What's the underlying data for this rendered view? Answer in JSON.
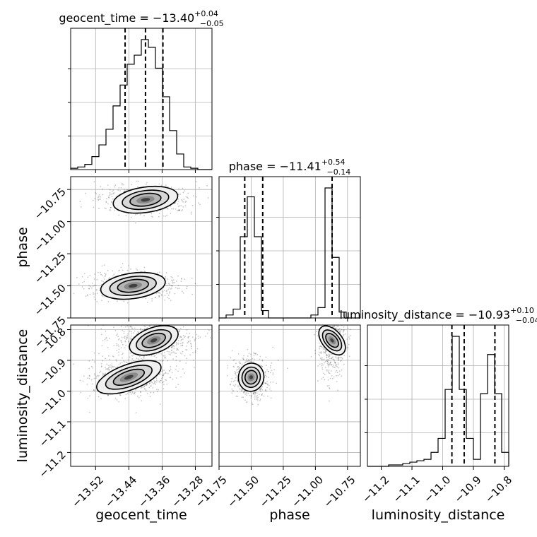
{
  "chart_data": {
    "type": "corner",
    "parameters": [
      {
        "name": "geocent_time",
        "axis_label": "geocent_time",
        "title": {
          "prefix": "geocent_time = ",
          "median": "−13.40",
          "upper": "+0.04",
          "lower": "−0.05"
        },
        "range": [
          -13.58,
          -13.24
        ],
        "ticks": [
          "−13.52",
          "−13.44",
          "−13.36",
          "−13.28"
        ],
        "tick_values": [
          -13.52,
          -13.44,
          -13.36,
          -13.28
        ],
        "quantile_lines": [
          -13.449,
          -13.4,
          -13.358
        ],
        "histogram": {
          "bin_edges": [
            -13.58,
            -13.563,
            -13.546,
            -13.529,
            -13.512,
            -13.495,
            -13.478,
            -13.461,
            -13.444,
            -13.427,
            -13.41,
            -13.393,
            -13.376,
            -13.359,
            -13.342,
            -13.325,
            -13.308,
            -13.291,
            -13.274,
            -13.257,
            -13.24
          ],
          "counts": [
            1,
            2,
            4,
            10,
            19,
            31,
            49,
            65,
            81,
            88,
            100,
            94,
            78,
            56,
            30,
            12,
            2,
            1,
            0,
            0
          ]
        }
      },
      {
        "name": "phase",
        "axis_label": "phase",
        "title": {
          "prefix": "phase = ",
          "median": "−11.41",
          "upper": "+0.54",
          "lower": "−0.14"
        },
        "range": [
          -11.75,
          -10.65
        ],
        "ticks": [
          "−11.75",
          "−11.50",
          "−11.25",
          "−11.00",
          "−10.75"
        ],
        "tick_values": [
          -11.75,
          -11.5,
          -11.25,
          -11.0,
          -10.75
        ],
        "quantile_lines": [
          -11.55,
          -11.41,
          -10.87
        ],
        "histogram": {
          "bin_edges": [
            -11.75,
            -11.695,
            -11.64,
            -11.585,
            -11.53,
            -11.475,
            -11.42,
            -11.365,
            -11.31,
            -11.255,
            -11.2,
            -11.145,
            -11.09,
            -11.035,
            -10.98,
            -10.925,
            -10.87,
            -10.815,
            -10.76,
            -10.705,
            -10.65
          ],
          "counts": [
            0,
            2,
            6,
            55,
            82,
            55,
            5,
            0,
            0,
            0,
            0,
            0,
            0,
            2,
            7,
            88,
            41,
            4,
            0,
            0
          ]
        }
      },
      {
        "name": "luminosity_distance",
        "axis_label": "luminosity_distance",
        "title": {
          "prefix": "luminosity_distance = ",
          "median": "−10.93",
          "upper": "+0.10",
          "lower": "−0.04"
        },
        "range": [
          -11.245,
          -10.785
        ],
        "ticks": [
          "−11.2",
          "−11.1",
          "−11.0",
          "−10.9",
          "−10.8"
        ],
        "tick_values": [
          -11.2,
          -11.1,
          -11.0,
          -10.9,
          -10.8
        ],
        "quantile_lines": [
          -10.97,
          -10.93,
          -10.83
        ],
        "histogram": {
          "bin_edges": [
            -11.245,
            -11.222,
            -11.199,
            -11.176,
            -11.153,
            -11.13,
            -11.107,
            -11.084,
            -11.061,
            -11.038,
            -11.015,
            -10.992,
            -10.969,
            -10.946,
            -10.923,
            -10.9,
            -10.877,
            -10.854,
            -10.831,
            -10.808,
            -10.785
          ],
          "counts": [
            0,
            0,
            0,
            1,
            1,
            2,
            3,
            4,
            5,
            10,
            20,
            55,
            93,
            55,
            20,
            5,
            52,
            80,
            52,
            10
          ]
        }
      }
    ],
    "pairs": [
      {
        "x": "geocent_time",
        "y": "phase",
        "density_peaks": [
          {
            "x": -13.4,
            "y": -10.83
          },
          {
            "x": -13.43,
            "y": -11.5
          }
        ]
      },
      {
        "x": "geocent_time",
        "y": "luminosity_distance",
        "density_peaks": [
          {
            "x": -13.38,
            "y": -10.835
          },
          {
            "x": -13.44,
            "y": -10.955
          }
        ]
      },
      {
        "x": "phase",
        "y": "luminosity_distance",
        "density_peaks": [
          {
            "x": -10.87,
            "y": -10.835
          },
          {
            "x": -11.5,
            "y": -10.955
          }
        ]
      }
    ],
    "grid": true,
    "quantiles": [
      0.16,
      0.5,
      0.84
    ]
  }
}
